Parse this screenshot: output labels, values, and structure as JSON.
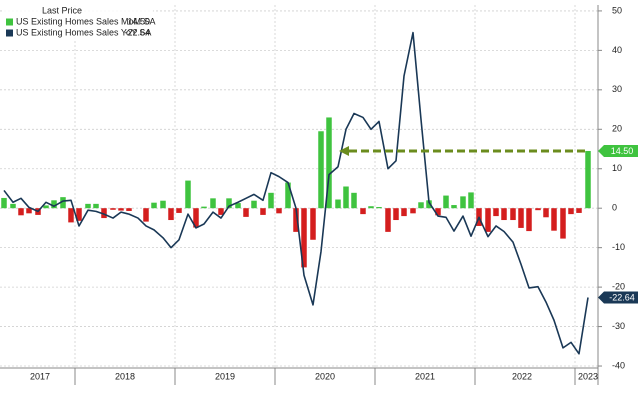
{
  "chart_data": {
    "type": "combo",
    "legend_title": "Last Price",
    "x": [
      2017.29,
      2017.38,
      2017.46,
      2017.54,
      2017.63,
      2017.71,
      2017.79,
      2017.88,
      2017.96,
      2018.04,
      2018.13,
      2018.21,
      2018.29,
      2018.38,
      2018.46,
      2018.54,
      2018.63,
      2018.71,
      2018.79,
      2018.88,
      2018.96,
      2019.04,
      2019.13,
      2019.21,
      2019.29,
      2019.38,
      2019.46,
      2019.54,
      2019.63,
      2019.71,
      2019.79,
      2019.88,
      2019.96,
      2020.04,
      2020.13,
      2020.21,
      2020.29,
      2020.38,
      2020.46,
      2020.54,
      2020.63,
      2020.71,
      2020.79,
      2020.88,
      2020.96,
      2021.04,
      2021.13,
      2021.21,
      2021.29,
      2021.38,
      2021.46,
      2021.54,
      2021.63,
      2021.71,
      2021.79,
      2021.88,
      2021.96,
      2022.04,
      2022.13,
      2022.21,
      2022.29,
      2022.38,
      2022.46,
      2022.54,
      2022.63,
      2022.71,
      2022.79,
      2022.88,
      2022.96,
      2023.04,
      2023.13
    ],
    "series": [
      {
        "name": "US Existing Homes Sales MoM SA",
        "type": "bar",
        "color": "#3fc33f",
        "negative_color": "#d41e1e",
        "last_label": "14.50",
        "values": [
          2.6,
          1.1,
          -1.8,
          -1.3,
          -1.7,
          0.7,
          2.0,
          2.8,
          -3.6,
          -3.2,
          1.1,
          1.1,
          -2.5,
          -0.4,
          -0.6,
          -0.7,
          0.0,
          -3.4,
          1.4,
          1.9,
          -3.0,
          -1.2,
          7.0,
          -4.9,
          0.4,
          2.5,
          -1.7,
          2.5,
          1.3,
          -2.2,
          1.9,
          -1.7,
          3.9,
          -1.3,
          6.5,
          -6.0,
          -15.0,
          -8.0,
          19.5,
          23.0,
          2.2,
          5.5,
          3.9,
          -1.5,
          0.5,
          0.3,
          -6.0,
          -3.0,
          -2.0,
          -1.3,
          1.5,
          2.0,
          -1.8,
          3.2,
          0.8,
          3.0,
          4.0,
          -4.5,
          -6.0,
          -2.0,
          -3.0,
          -3.0,
          -5.0,
          -5.8,
          -0.5,
          -2.3,
          -5.7,
          -7.7,
          -1.5,
          -1.2,
          14.5
        ]
      },
      {
        "name": "US Existing Homes Sales YoY SA",
        "type": "line",
        "color": "#1a3856",
        "last_label": "-22.64",
        "values": [
          4.5,
          1.5,
          2.5,
          0.2,
          -0.8,
          1.5,
          0.5,
          1.8,
          2.0,
          -4.5,
          -0.5,
          -0.8,
          -1.5,
          -2.5,
          -1.0,
          -1.5,
          -2.5,
          -4.5,
          -5.5,
          -7.5,
          -10.0,
          -8.0,
          -1.5,
          -5.0,
          -4.0,
          -1.0,
          -2.5,
          0.5,
          1.5,
          2.5,
          3.5,
          2.0,
          9.0,
          8.0,
          6.5,
          0.0,
          -17.0,
          -24.5,
          -11.0,
          8.5,
          10.5,
          20.0,
          24.0,
          23.0,
          20.0,
          22.0,
          10.0,
          12.0,
          33.5,
          44.5,
          22.5,
          1.5,
          -2.0,
          -2.3,
          -5.8,
          -2.0,
          -7.1,
          -2.3,
          -7.2,
          -4.5,
          -5.9,
          -8.6,
          -14.2,
          -20.2,
          -19.9,
          -23.8,
          -28.4,
          -35.4,
          -34.0,
          -36.9,
          -22.64
        ]
      }
    ],
    "xlim": [
      2017.25,
      2023.23
    ],
    "xticks": [
      {
        "value": 2017.65,
        "label": "2017"
      },
      {
        "value": 2018.5,
        "label": "2018"
      },
      {
        "value": 2019.5,
        "label": "2019"
      },
      {
        "value": 2020.5,
        "label": "2020"
      },
      {
        "value": 2021.5,
        "label": "2021"
      },
      {
        "value": 2022.47,
        "label": "2022"
      },
      {
        "value": 2023.13,
        "label": "2023"
      }
    ],
    "year_boundaries": [
      2018,
      2019,
      2020,
      2021,
      2022,
      2023
    ],
    "ylim": [
      -40.5,
      51.5
    ],
    "yticks": [
      50,
      40,
      30,
      20,
      10,
      0,
      -10,
      -20,
      -30,
      -40
    ],
    "grid": true
  }
}
